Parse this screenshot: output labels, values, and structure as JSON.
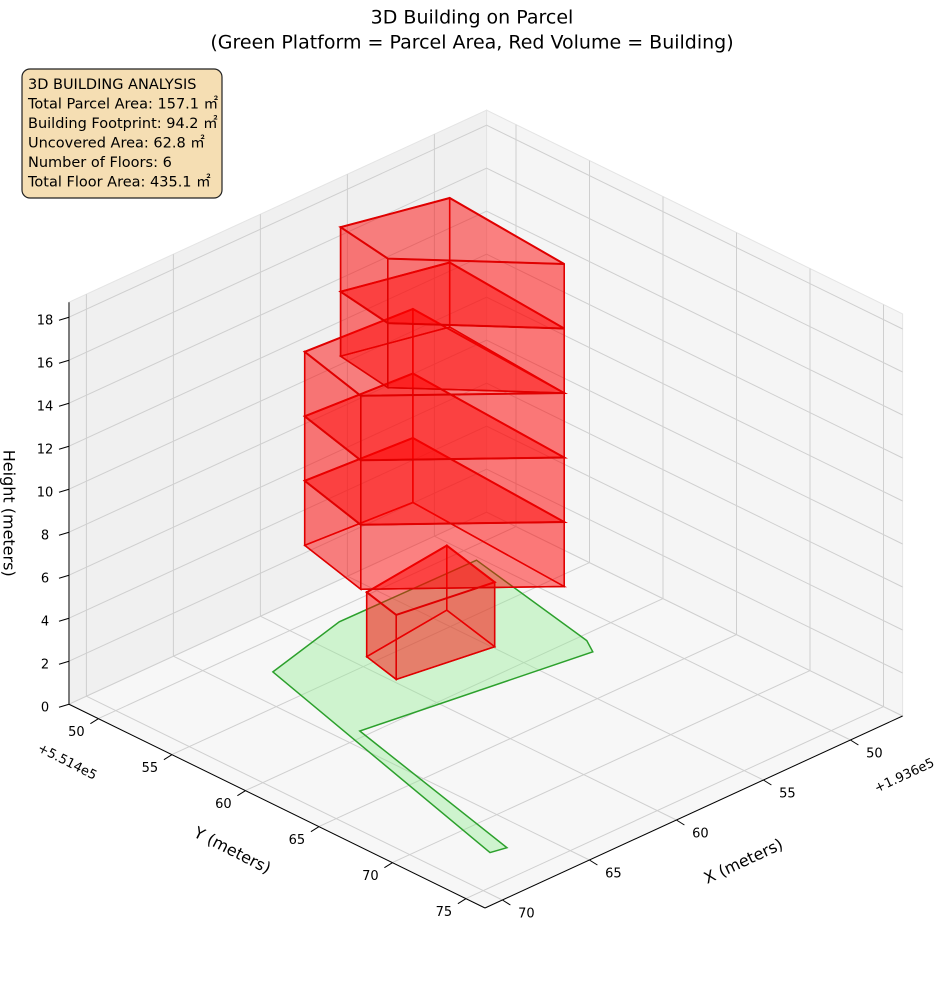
{
  "chart_data": {
    "type": "polygon3d",
    "title": "3D Building on Parcel",
    "subtitle": "(Green Platform = Parcel Area, Red Volume = Building)",
    "annotation": [
      "3D BUILDING ANALYSIS",
      "Total Parcel Area: 157.1 ㎡",
      "Building Footprint: 94.2 ㎡",
      "Uncovered Area: 62.8 ㎡",
      "Number of Floors: 6",
      "Total Floor Area: 435.1 ㎡"
    ],
    "xlabel": "X (meters)",
    "ylabel": "Y (meters)",
    "zlabel": "Height (meters)",
    "xoffset": "+1.936e5",
    "yoffset": "+5.514e5",
    "xlim": [
      47,
      71
    ],
    "ylim": [
      48,
      76.3
    ],
    "zlim": [
      0,
      18.7
    ],
    "xticks": [
      50,
      55,
      60,
      65,
      70
    ],
    "yticks": [
      50,
      55,
      60,
      65,
      70,
      75
    ],
    "zticks": [
      0,
      2,
      4,
      6,
      8,
      10,
      12,
      14,
      16,
      18
    ],
    "grid": true,
    "parcel": {
      "color": "#2ca02c",
      "x": [
        63.0,
        58.0,
        50.2,
        51.8,
        52.3,
        64.0,
        66.7,
        67.5
      ],
      "y": [
        52.4,
        51.0,
        51.1,
        60.5,
        61.5,
        59.5,
        72.7,
        72.5
      ]
    },
    "building": {
      "color": "#e00000",
      "floors": [
        {
          "z0": 0,
          "z1": 3,
          "x": [
            59.3,
            59.8,
            54.9,
            54.1
          ],
          "y": [
            54.4,
            57.0,
            57.9,
            53.7
          ]
        },
        {
          "z0": 3,
          "z1": 6,
          "x": [
            59.3,
            58.3,
            52.5,
            53.1
          ],
          "y": [
            54.0,
            49.0,
            49.5,
            60.5
          ]
        },
        {
          "z0": 6,
          "z1": 9,
          "x": [
            59.3,
            58.3,
            52.5,
            53.1
          ],
          "y": [
            54.0,
            49.0,
            49.5,
            60.5
          ]
        },
        {
          "z0": 9,
          "z1": 12,
          "x": [
            59.3,
            58.3,
            52.5,
            53.1
          ],
          "y": [
            54.0,
            49.0,
            49.5,
            60.5
          ]
        },
        {
          "z0": 12,
          "z1": 15,
          "x": [
            58.0,
            57.5,
            52.5,
            53.1
          ],
          "y": [
            54.3,
            50.5,
            52.0,
            60.5
          ]
        },
        {
          "z0": 15,
          "z1": 18,
          "x": [
            58.0,
            57.5,
            52.5,
            53.1
          ],
          "y": [
            54.3,
            50.5,
            52.0,
            60.5
          ]
        }
      ]
    }
  }
}
